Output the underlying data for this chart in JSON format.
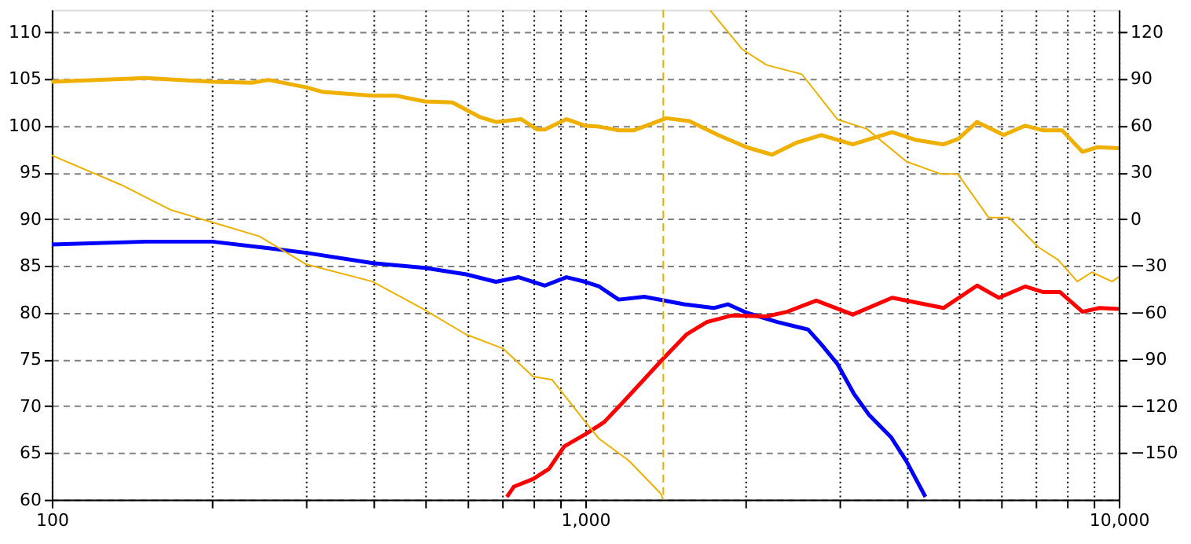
{
  "chart_data": {
    "type": "line",
    "log": "x",
    "grid": true,
    "legend": false,
    "marker": "none",
    "xlim": [
      100,
      10000
    ],
    "xticks": [
      100,
      {
        "value": 200,
        "label": null
      },
      {
        "value": 300,
        "label": null
      },
      {
        "value": 400,
        "label": null
      },
      {
        "value": 500,
        "label": null
      },
      {
        "value": 600,
        "label": null
      },
      {
        "value": 700,
        "label": null
      },
      {
        "value": 800,
        "label": null
      },
      {
        "value": 900,
        "label": null
      },
      {
        "value": 1000,
        "label": "1,000"
      },
      {
        "value": 2000,
        "label": null
      },
      {
        "value": 3000,
        "label": null
      },
      {
        "value": 4000,
        "label": null
      },
      {
        "value": 5000,
        "label": null
      },
      {
        "value": 6000,
        "label": null
      },
      {
        "value": 7000,
        "label": null
      },
      {
        "value": 8000,
        "label": null
      },
      {
        "value": 9000,
        "label": null
      },
      {
        "value": 10000,
        "label": "10,000"
      }
    ],
    "ylim": [
      60,
      112.4
    ],
    "yticks": [
      60,
      65,
      70,
      75,
      80,
      85,
      90,
      95,
      100,
      105,
      110
    ],
    "y2lim": [
      -180,
      134.4
    ],
    "y2ticks": [
      -150,
      -120,
      -90,
      -60,
      -30,
      0,
      30,
      60,
      90,
      120
    ],
    "ref_lines": [
      {
        "axis": "x",
        "value": 1400,
        "color": "#f0b000",
        "line_style": "dashed"
      }
    ],
    "series": [
      {
        "color": "#f0b000",
        "x": [
          100,
          150,
          200,
          237,
          255,
          300,
          323,
          400,
          443,
          500,
          563,
          636,
          680,
          758,
          813,
          840,
          922,
          1000,
          1062,
          1155,
          1232,
          1418,
          1566,
          1774,
          2005,
          2239,
          2492,
          2770,
          3172,
          3760,
          4148,
          4692,
          5003,
          5424,
          6083,
          6674,
          7220,
          7830,
          8550,
          9120,
          10000
        ],
        "values": [
          104.7,
          105.1,
          104.7,
          104.6,
          104.9,
          104.1,
          103.6,
          103.2,
          103.2,
          102.6,
          102.5,
          100.9,
          100.4,
          100.7,
          99.6,
          99.6,
          100.7,
          100.0,
          99.9,
          99.5,
          99.5,
          100.8,
          100.5,
          99.0,
          97.7,
          96.9,
          98.2,
          99.0,
          98.0,
          99.3,
          98.5,
          98.0,
          98.6,
          100.4,
          99.0,
          100.0,
          99.5,
          99.5,
          97.2,
          97.7,
          97.6
        ]
      },
      {
        "color": "#0000ff",
        "x": [
          100,
          150,
          200,
          255,
          300,
          400,
          500,
          598,
          680,
          750,
          840,
          922,
          1000,
          1062,
          1155,
          1290,
          1530,
          1740,
          1850,
          2005,
          2290,
          2615,
          2770,
          2970,
          3190,
          3400,
          3740,
          4000,
          4340
        ],
        "values": [
          87.3,
          87.6,
          87.6,
          86.9,
          86.4,
          85.3,
          84.8,
          84.1,
          83.3,
          83.8,
          82.9,
          83.8,
          83.3,
          82.8,
          81.4,
          81.7,
          80.9,
          80.5,
          80.9,
          80.0,
          79.0,
          78.2,
          76.6,
          74.5,
          71.3,
          69.1,
          66.7,
          64.1,
          60.3
        ]
      },
      {
        "color": "#ff0000",
        "x": [
          713,
          735,
          798,
          855,
          913,
          1000,
          1085,
          1180,
          1290,
          1395,
          1550,
          1690,
          1880,
          2186,
          2390,
          2710,
          3172,
          3760,
          4692,
          5424,
          5960,
          6674,
          7220,
          7760,
          8550,
          9200,
          10000
        ],
        "values": [
          60.3,
          61.4,
          62.2,
          63.3,
          65.7,
          67.0,
          68.3,
          70.5,
          72.9,
          75.0,
          77.7,
          79.0,
          79.7,
          79.6,
          80.1,
          81.3,
          79.8,
          81.6,
          80.5,
          82.9,
          81.6,
          82.8,
          82.2,
          82.2,
          80.1,
          80.5,
          80.4
        ]
      },
      {
        "color": "#f0b000",
        "axis": "y2",
        "x": [
          100,
          135,
          167,
          200,
          245,
          300,
          399,
          499,
          598,
          701,
          798,
          866,
          1000,
          1062,
          1207,
          1384,
          1400,
          1500,
          1714,
          1969,
          2186,
          2547,
          2969,
          3369,
          3998,
          4639,
          4991,
          5704,
          6226,
          7069,
          7690,
          8360,
          8904,
          9712,
          10000
        ],
        "values": [
          41,
          22,
          6,
          -2,
          -11,
          -29,
          -40,
          -58,
          -74,
          -83,
          -101,
          -103,
          -130,
          -141,
          -155,
          -176,
          -180,
          null,
          134,
          109,
          99,
          93,
          64,
          58,
          37,
          29,
          29,
          1,
          1,
          -18,
          -26,
          -40,
          -34,
          -40,
          -37
        ]
      }
    ]
  }
}
